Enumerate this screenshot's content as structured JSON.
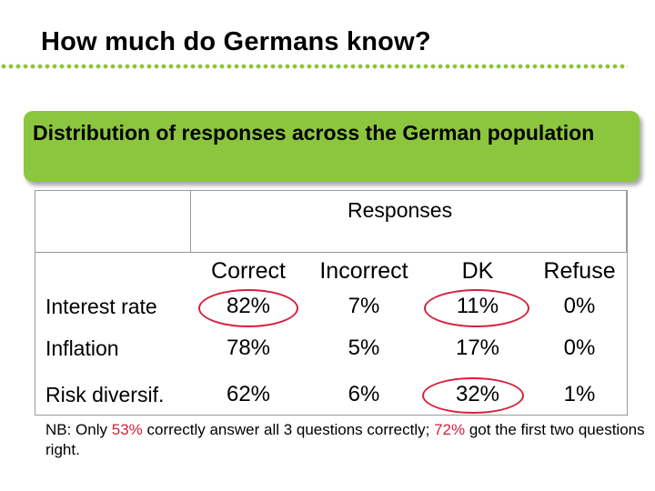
{
  "slide": {
    "title": "How much do Germans know?",
    "banner": "Distribution of responses across the German population",
    "accent_color": "#8cc63f",
    "highlight_color": "#d4213d"
  },
  "table": {
    "group_header": "Responses",
    "columns": [
      "Correct",
      "Incorrect",
      "DK",
      "Refuse"
    ],
    "rows": [
      {
        "label": "Interest rate",
        "values": [
          "82%",
          "7%",
          "11%",
          "0%"
        ]
      },
      {
        "label": "Inflation",
        "values": [
          "78%",
          "5%",
          "17%",
          "0%"
        ]
      },
      {
        "label": "Risk diversif.",
        "values": [
          "62%",
          "6%",
          "32%",
          "1%"
        ]
      }
    ]
  },
  "note": {
    "prefix": "NB: Only ",
    "pct_all": "53%",
    "middle": " correctly answer all 3 questions correctly; ",
    "pct_first": "72%",
    "suffix": " got the first two questions right."
  }
}
